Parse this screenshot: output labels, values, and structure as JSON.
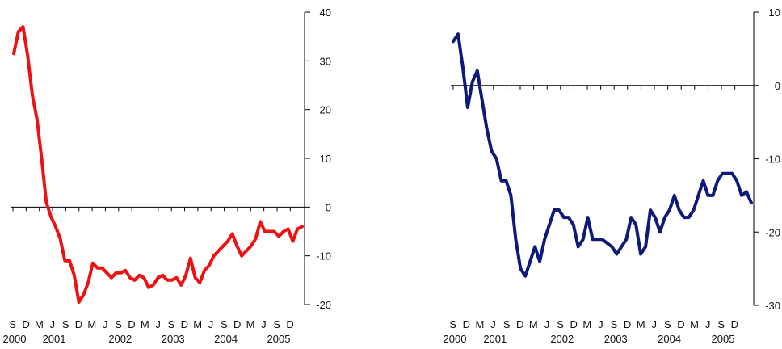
{
  "chart_data": [
    {
      "type": "line",
      "title": "",
      "xlabel": "",
      "ylabel": "",
      "y_axis_side": "right",
      "ylim": [
        -20,
        40
      ],
      "y_ticks": [
        40,
        30,
        20,
        10,
        0,
        -10,
        -20
      ],
      "grid": false,
      "color": "#ee1111",
      "x_month_labels": [
        "S",
        "D",
        "M",
        "J",
        "S",
        "D",
        "M",
        "J",
        "S",
        "D",
        "M",
        "J",
        "S",
        "D",
        "M",
        "J",
        "S",
        "D",
        "M",
        "J",
        "S",
        "D"
      ],
      "x_year_labels": [
        "2000",
        "2001",
        "2002",
        "2003",
        "2004",
        "2005"
      ],
      "x_year_label_month_index": [
        0,
        3,
        8,
        12,
        16,
        20
      ],
      "series": [
        {
          "values": [
            31.5,
            36,
            37,
            31,
            23,
            18,
            10,
            1,
            -2,
            -4,
            -6.5,
            -11,
            -11,
            -14,
            -19.5,
            -18,
            -15.5,
            -11.5,
            -12.5,
            -12.5,
            -13.5,
            -14.5,
            -13.5,
            -13.5,
            -13,
            -14.5,
            -15,
            -14,
            -14.5,
            -16.5,
            -16,
            -14.5,
            -14,
            -15,
            -15,
            -14.5,
            -16,
            -14,
            -10.5,
            -14.5,
            -15.5,
            -13,
            -12,
            -10,
            -9,
            -8,
            -7,
            -5.5,
            -8,
            -10,
            -9,
            -8,
            -6.5,
            -3,
            -5,
            -5,
            -5,
            -6,
            -5,
            -4.5,
            -7,
            -4.5,
            -4
          ]
        }
      ]
    },
    {
      "type": "line",
      "title": "",
      "xlabel": "",
      "ylabel": "",
      "y_axis_side": "right",
      "ylim": [
        -30,
        10
      ],
      "y_ticks": [
        10,
        0,
        -10,
        -20,
        -30
      ],
      "grid": false,
      "color": "#0d1a7a",
      "x_month_labels": [
        "S",
        "D",
        "M",
        "J",
        "S",
        "D",
        "M",
        "J",
        "S",
        "D",
        "M",
        "J",
        "S",
        "D",
        "M",
        "J",
        "S",
        "D",
        "M",
        "J",
        "S",
        "D"
      ],
      "x_year_labels": [
        "2000",
        "2001",
        "2002",
        "2003",
        "2004",
        "2005"
      ],
      "x_year_label_month_index": [
        0,
        3,
        8,
        12,
        16,
        20
      ],
      "series": [
        {
          "values": [
            6,
            7,
            2.5,
            -3,
            0.5,
            2,
            -2,
            -6,
            -9,
            -10,
            -13,
            -13,
            -15,
            -21,
            -25,
            -26,
            -24,
            -22,
            -24,
            -21,
            -19,
            -17,
            -17,
            -18,
            -18,
            -19,
            -22,
            -21,
            -18,
            -21,
            -21,
            -21,
            -21.5,
            -22,
            -23,
            -22,
            -21,
            -18,
            -19,
            -23,
            -22,
            -17,
            -18,
            -20,
            -18,
            -17,
            -15,
            -17,
            -18,
            -18,
            -17,
            -15,
            -13,
            -15,
            -15,
            -13,
            -12,
            -12,
            -12,
            -13,
            -15,
            -14.5,
            -16
          ]
        }
      ]
    }
  ]
}
